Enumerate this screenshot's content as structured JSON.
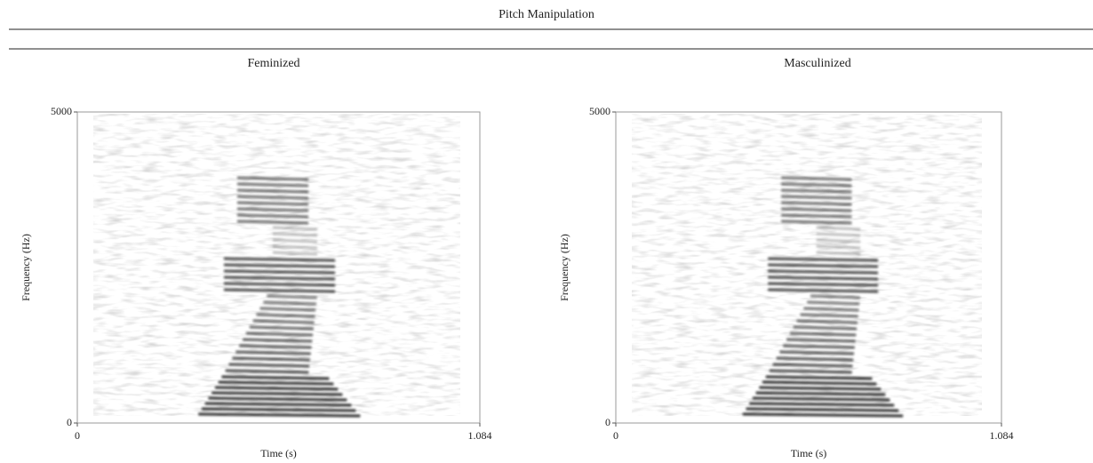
{
  "title": "Pitch Manipulation",
  "panels": [
    {
      "title": "Feminized",
      "xlabel": "Time (s)",
      "ylabel": "Frequency (Hz)",
      "xticks": [
        0,
        1.084
      ],
      "yticks": [
        0,
        5000
      ]
    },
    {
      "title": "Masculinized",
      "xlabel": "Time (s)",
      "ylabel": "Frequency (Hz)",
      "xticks": [
        0,
        1.084
      ],
      "yticks": [
        0,
        5000
      ]
    }
  ]
}
